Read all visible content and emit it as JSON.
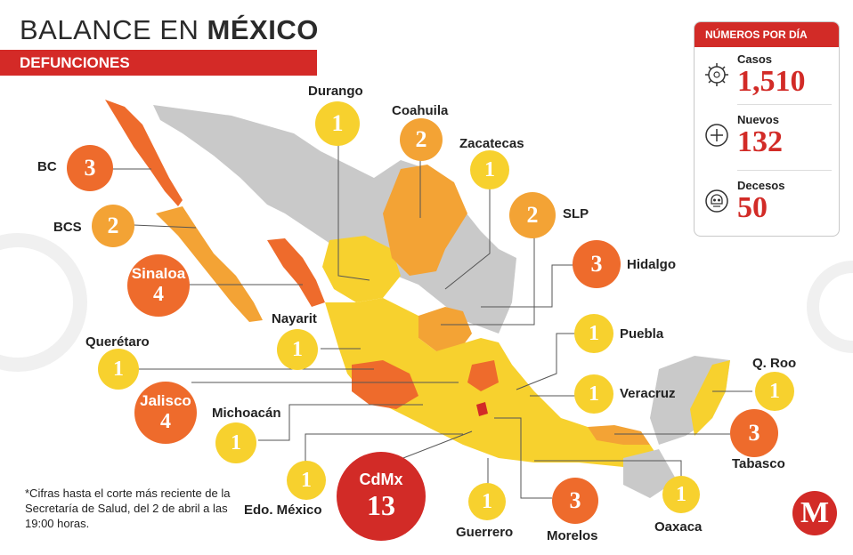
{
  "header": {
    "title_light": "BALANCE EN",
    "title_bold": "MÉXICO",
    "subtitle": "DEFUNCIONES"
  },
  "colors": {
    "yellow": "#f7d12e",
    "orange": "#f3a335",
    "red_orange": "#ee6b2c",
    "dark_red": "#d22b27",
    "gray": "#c9c9c9"
  },
  "states": [
    {
      "name": "Durango",
      "value": "1"
    },
    {
      "name": "Coahuila",
      "value": "2"
    },
    {
      "name": "Zacatecas",
      "value": "1"
    },
    {
      "name": "BC",
      "value": "3"
    },
    {
      "name": "BCS",
      "value": "2"
    },
    {
      "name": "SLP",
      "value": "2"
    },
    {
      "name": "Sinaloa",
      "value": "4"
    },
    {
      "name": "Hidalgo",
      "value": "3"
    },
    {
      "name": "Nayarit",
      "value": "1"
    },
    {
      "name": "Puebla",
      "value": "1"
    },
    {
      "name": "Querétaro",
      "value": "1"
    },
    {
      "name": "Q. Roo",
      "value": "1"
    },
    {
      "name": "Jalisco",
      "value": "4"
    },
    {
      "name": "Veracruz",
      "value": "1"
    },
    {
      "name": "Michoacán",
      "value": "1"
    },
    {
      "name": "Tabasco",
      "value": "3"
    },
    {
      "name": "Edo. México",
      "value": "1"
    },
    {
      "name": "CdMx",
      "value": "13"
    },
    {
      "name": "Guerrero",
      "value": "1"
    },
    {
      "name": "Morelos",
      "value": "3"
    },
    {
      "name": "Oaxaca",
      "value": "1"
    }
  ],
  "stats": {
    "heading": "NÚMEROS POR DÍA",
    "casos_label": "Casos",
    "casos_value": "1,510",
    "nuevos_label": "Nuevos",
    "nuevos_value": "132",
    "decesos_label": "Decesos",
    "decesos_value": "50"
  },
  "note": "*Cifras hasta el corte más reciente de la Secretaría de Salud, del 2 de abril a las 19:00 horas.",
  "logo": "M"
}
